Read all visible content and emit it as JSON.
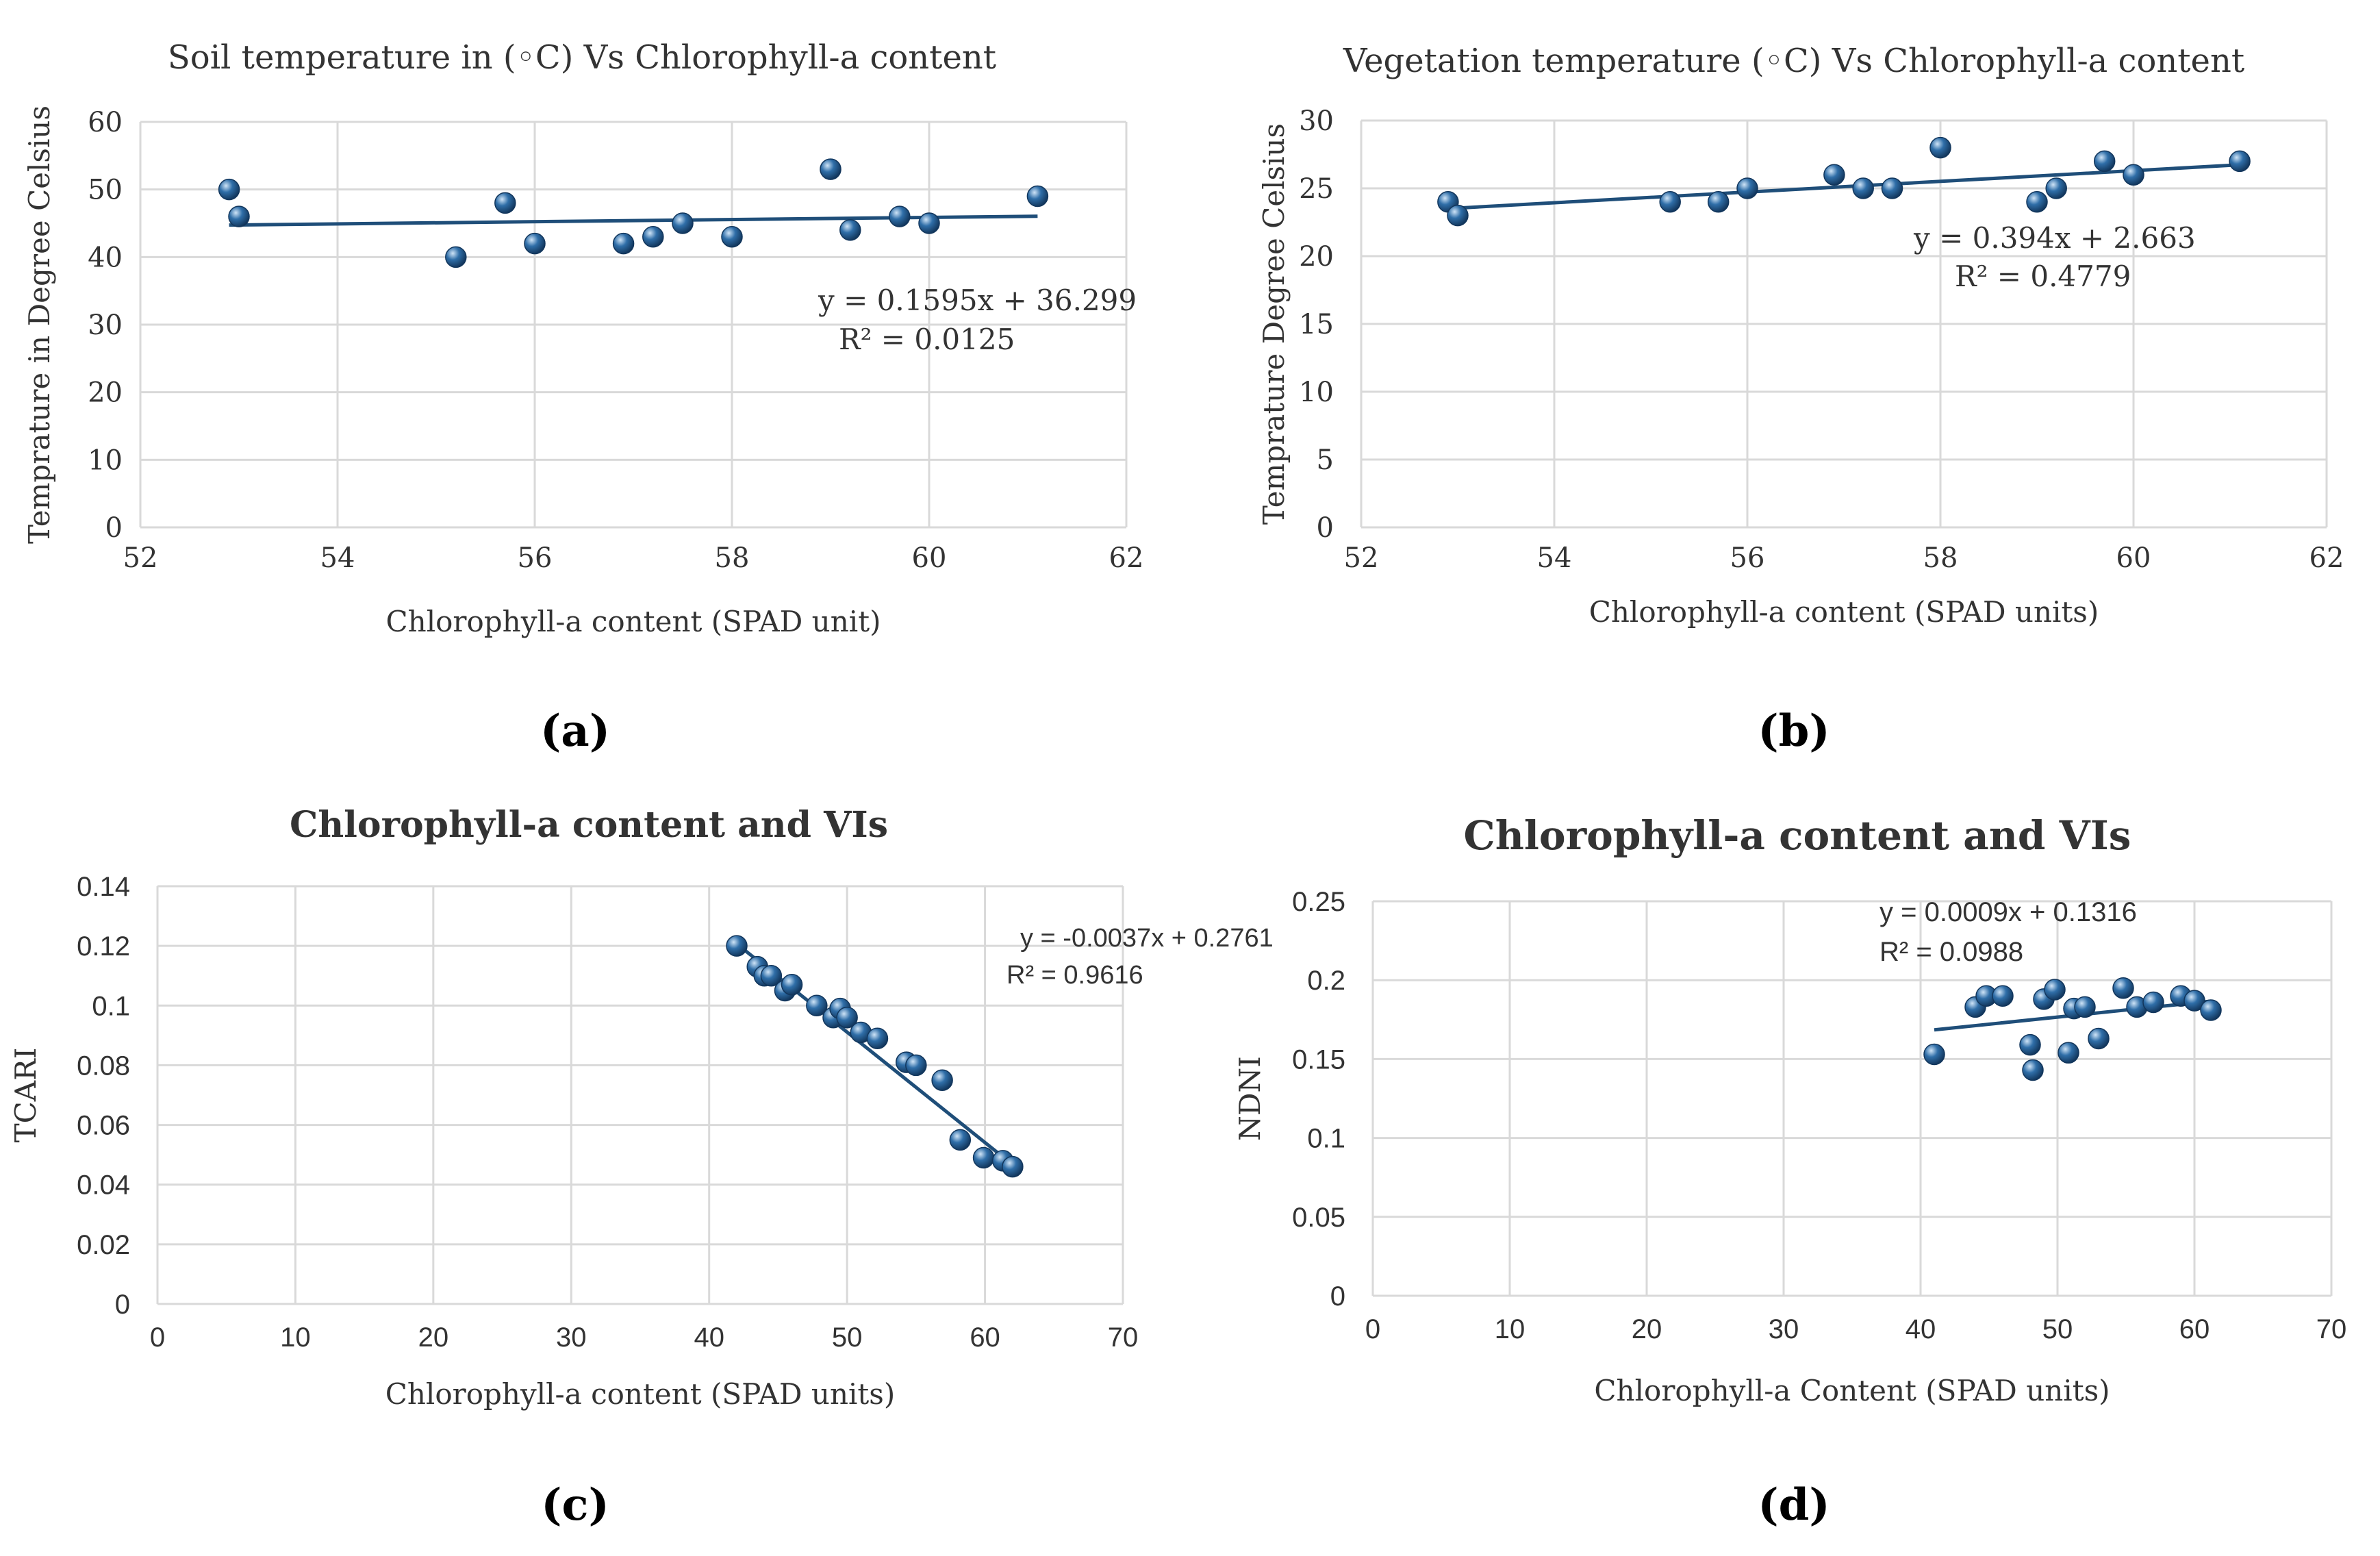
{
  "figure": {
    "panels": [
      {
        "label": "(a)"
      },
      {
        "label": "(b)"
      },
      {
        "label": "(c)"
      },
      {
        "label": "(d)"
      }
    ]
  },
  "colors": {
    "marker": "#2f6ea8",
    "marker_highlight": "#cfe4f7",
    "marker_dark": "#12365c",
    "trendline": "#1f4e79",
    "grid": "#d9d9d9",
    "axis_text": "#333333"
  },
  "chart_data": [
    {
      "id": "a",
      "type": "scatter",
      "title": "Soil temperature in (◦C) Vs Chlorophyll-a content",
      "title_bold": false,
      "xlabel": "Chlorophyll-a  content  (SPAD unit)",
      "ylabel": "Temprature  in  Degree  Celsius",
      "xlim": [
        52,
        62
      ],
      "ylim": [
        0,
        60
      ],
      "xticks": [
        "52",
        "54",
        "56",
        "58",
        "60",
        "62"
      ],
      "yticks": [
        "0",
        "10",
        "20",
        "30",
        "40",
        "50",
        "60"
      ],
      "x": [
        52.9,
        53.0,
        55.2,
        55.7,
        56.0,
        56.9,
        57.2,
        57.5,
        58.0,
        59.0,
        59.2,
        59.7,
        60.0,
        61.1
      ],
      "y": [
        50,
        46,
        40,
        48,
        42,
        42,
        43,
        45,
        43,
        53,
        44,
        46,
        45,
        49
      ],
      "trendline": {
        "slope": 0.1595,
        "intercept": 36.299,
        "x_range": [
          52.9,
          61.1
        ]
      },
      "equation": "y = 0.1595x + 36.299",
      "r2": "R² = 0.0125"
    },
    {
      "id": "b",
      "type": "scatter",
      "title": "Vegetation temperature (◦C) Vs Chlorophyll-a content",
      "title_bold": false,
      "xlabel": "Chlorophyll-a  content  (SPAD units)",
      "ylabel": "Temprature  Degree  Celsius",
      "xlim": [
        52,
        62
      ],
      "ylim": [
        0,
        30
      ],
      "xticks": [
        "52",
        "54",
        "56",
        "58",
        "60",
        "62"
      ],
      "yticks": [
        "0",
        "5",
        "10",
        "15",
        "20",
        "25",
        "30"
      ],
      "x": [
        52.9,
        53.0,
        55.2,
        55.7,
        56.0,
        56.9,
        57.2,
        57.5,
        58.0,
        59.0,
        59.2,
        59.7,
        60.0,
        61.1
      ],
      "y": [
        24,
        23,
        24,
        24,
        25,
        26,
        25,
        25,
        28,
        24,
        25,
        27,
        26,
        27
      ],
      "trendline": {
        "slope": 0.394,
        "intercept": 2.663,
        "x_range": [
          52.9,
          61.1
        ]
      },
      "equation": "y = 0.394x + 2.663",
      "r2": "R² = 0.4779"
    },
    {
      "id": "c",
      "type": "scatter",
      "title": "Chlorophyll-a content and VIs",
      "title_bold": true,
      "xlabel": "Chlorophyll-a  content  (SPAD units)",
      "ylabel": "TCARI",
      "xlim": [
        0,
        70
      ],
      "ylim": [
        0,
        0.14
      ],
      "xticks": [
        "0",
        "10",
        "20",
        "30",
        "40",
        "50",
        "60",
        "70"
      ],
      "yticks": [
        "0",
        "0.02",
        "0.04",
        "0.06",
        "0.08",
        "0.1",
        "0.12",
        "0.14"
      ],
      "x": [
        42,
        43.5,
        44,
        44.5,
        45.5,
        46,
        47.8,
        49,
        49.5,
        50,
        51,
        52.2,
        54.3,
        55,
        56.9,
        58.2,
        59.9,
        61.3,
        62
      ],
      "y": [
        0.12,
        0.113,
        0.11,
        0.11,
        0.105,
        0.107,
        0.1,
        0.096,
        0.099,
        0.096,
        0.091,
        0.089,
        0.081,
        0.08,
        0.075,
        0.055,
        0.049,
        0.048,
        0.046
      ],
      "trendline": {
        "slope": -0.0037,
        "intercept": 0.2761,
        "x_range": [
          42,
          62
        ]
      },
      "equation": "y = -0.0037x + 0.2761",
      "r2": "R² = 0.9616"
    },
    {
      "id": "d",
      "type": "scatter",
      "title": "Chlorophyll-a  content and VIs",
      "title_bold": true,
      "xlabel": "Chlorophyll-a  Content  (SPAD units)",
      "ylabel": "NDNI",
      "xlim": [
        0,
        70
      ],
      "ylim": [
        0,
        0.25
      ],
      "xticks": [
        "0",
        "10",
        "20",
        "30",
        "40",
        "50",
        "60",
        "70"
      ],
      "yticks": [
        "0",
        "0.05",
        "0.1",
        "0.15",
        "0.2",
        "0.25"
      ],
      "x": [
        41,
        44,
        44.8,
        46,
        48,
        48.2,
        49,
        49.8,
        50.8,
        51.2,
        52,
        53,
        54.8,
        55.8,
        57,
        59,
        60,
        61.2
      ],
      "y": [
        0.153,
        0.183,
        0.19,
        0.19,
        0.159,
        0.143,
        0.188,
        0.194,
        0.154,
        0.182,
        0.183,
        0.163,
        0.195,
        0.183,
        0.186,
        0.19,
        0.187,
        0.181
      ],
      "trendline": {
        "slope": 0.0009,
        "intercept": 0.1316,
        "x_range": [
          41,
          61.2
        ]
      },
      "equation": "y = 0.0009x + 0.1316",
      "r2": "R² = 0.0988"
    }
  ]
}
